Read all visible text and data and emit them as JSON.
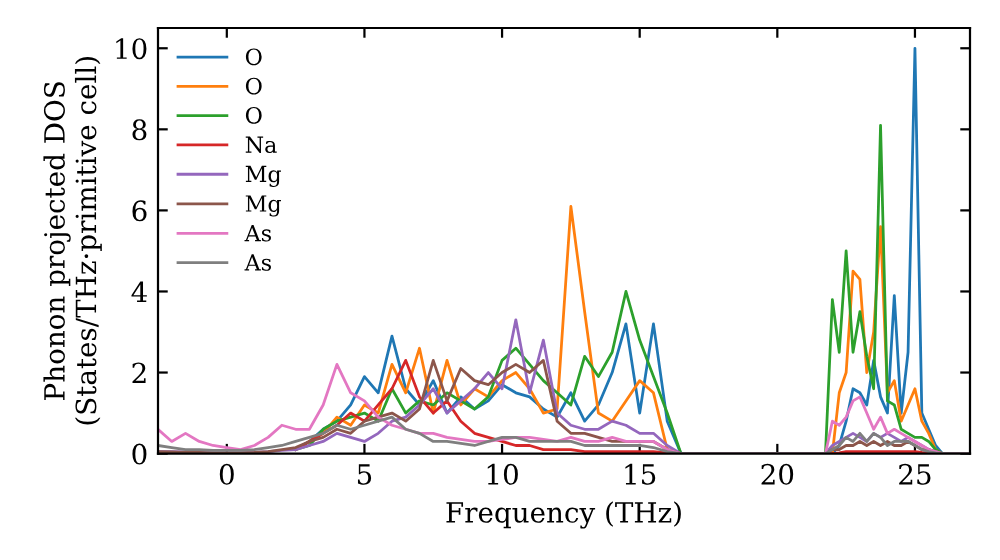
{
  "chart_data": {
    "type": "line",
    "xlabel": "Frequency (THz)",
    "ylabel": "Phonon projected DOS\n(States/THz·primitive cell)",
    "xlim": [
      -2.5,
      27
    ],
    "ylim": [
      0,
      10.5
    ],
    "xticks": [
      0,
      5,
      10,
      15,
      20,
      25
    ],
    "yticks": [
      0,
      2,
      4,
      6,
      8,
      10
    ],
    "grid": false,
    "legend": "top left",
    "marker": "none",
    "line_style": "solid",
    "x": [
      -2.5,
      -2,
      -1.5,
      -1,
      -0.5,
      0,
      0.5,
      1,
      1.5,
      2,
      2.5,
      3,
      3.5,
      4,
      4.5,
      5,
      5.5,
      6,
      6.5,
      7,
      7.5,
      8,
      8.5,
      9,
      9.5,
      10,
      10.5,
      11,
      11.5,
      12,
      12.5,
      13,
      13.5,
      14,
      14.5,
      15,
      15.5,
      16,
      16.5,
      17,
      19,
      21,
      21.75,
      22,
      22.25,
      22.5,
      22.75,
      23,
      23.25,
      23.5,
      23.75,
      24,
      24.25,
      24.5,
      24.75,
      25,
      25.25,
      25.5,
      25.75,
      26,
      26.5,
      27
    ],
    "series": [
      {
        "name": "O",
        "color": "#1f77b4",
        "values": [
          null,
          null,
          null,
          null,
          null,
          null,
          null,
          null,
          null,
          null,
          0.1,
          0.3,
          0.6,
          0.8,
          1.2,
          1.9,
          1.5,
          2.9,
          1.6,
          1.2,
          1.8,
          1.0,
          1.4,
          1.1,
          1.3,
          1.7,
          1.5,
          1.4,
          1.1,
          0.9,
          1.5,
          0.8,
          1.2,
          2.0,
          3.2,
          1.0,
          3.2,
          0.8,
          0,
          0,
          0,
          0,
          0,
          0,
          0.2,
          0.8,
          1.6,
          1.5,
          1.2,
          2.3,
          1.4,
          1.0,
          3.9,
          1.0,
          2.5,
          10.0,
          1.0,
          0.6,
          0.2,
          0,
          0,
          0
        ]
      },
      {
        "name": "O",
        "color": "#ff7f0e",
        "values": [
          null,
          null,
          null,
          null,
          null,
          null,
          null,
          null,
          null,
          null,
          null,
          0.3,
          0.5,
          0.9,
          0.7,
          1.2,
          1.0,
          2.2,
          1.5,
          2.6,
          1.0,
          2.3,
          1.2,
          1.6,
          1.4,
          1.8,
          2.0,
          1.6,
          1.0,
          1.1,
          6.1,
          3.5,
          1.0,
          0.8,
          1.3,
          1.8,
          1.5,
          0.1,
          0,
          0,
          0,
          0,
          0,
          0,
          1.5,
          2.0,
          4.5,
          4.3,
          2.0,
          3.0,
          5.6,
          1.5,
          1.8,
          0.8,
          1.2,
          1.6,
          0.8,
          0.5,
          0.1,
          0,
          0,
          0
        ]
      },
      {
        "name": "O",
        "color": "#2ca02c",
        "values": [
          null,
          null,
          null,
          null,
          null,
          null,
          null,
          null,
          null,
          null,
          0.1,
          0.2,
          0.6,
          0.8,
          0.9,
          1.0,
          0.8,
          1.6,
          1.0,
          1.3,
          1.2,
          1.5,
          1.3,
          1.1,
          1.4,
          2.3,
          2.6,
          2.2,
          1.8,
          1.5,
          1.2,
          2.4,
          1.9,
          2.5,
          4.0,
          2.8,
          1.9,
          1.0,
          0,
          0,
          0,
          0,
          0,
          3.8,
          2.5,
          5.0,
          2.5,
          3.5,
          2.4,
          1.6,
          8.1,
          1.3,
          1.2,
          0.6,
          0.5,
          0.4,
          0.4,
          0.3,
          0.1,
          0,
          0,
          0
        ]
      },
      {
        "name": "Na",
        "color": "#d62728",
        "values": [
          null,
          null,
          null,
          null,
          null,
          null,
          null,
          null,
          null,
          null,
          0.1,
          0.3,
          0.5,
          0.7,
          1.0,
          0.8,
          1.2,
          1.6,
          2.3,
          1.4,
          1.0,
          1.3,
          0.8,
          0.5,
          0.4,
          0.3,
          0.2,
          0.2,
          0.1,
          0.1,
          0.1,
          0.05,
          0.05,
          0.05,
          0.05,
          0.05,
          0.05,
          0.02,
          0,
          0,
          0,
          0,
          0,
          0,
          0.02,
          0.05,
          0.05,
          0.05,
          0.05,
          0.05,
          0.05,
          0.05,
          0.05,
          0.05,
          0.05,
          0.05,
          0.03,
          0.02,
          0.01,
          null,
          null,
          null
        ]
      },
      {
        "name": "Mg",
        "color": "#9467bd",
        "values": [
          0.05,
          0.05,
          0.04,
          0.03,
          0.02,
          0.02,
          0.02,
          0.03,
          0.05,
          0.08,
          0.1,
          0.2,
          0.3,
          0.5,
          0.4,
          0.3,
          0.5,
          0.8,
          0.9,
          1.2,
          1.6,
          1.0,
          1.3,
          1.6,
          2.0,
          1.6,
          3.3,
          1.5,
          2.8,
          1.0,
          0.7,
          0.6,
          0.6,
          0.8,
          0.7,
          0.5,
          0.5,
          0.2,
          0,
          0,
          0,
          0,
          0,
          0.2,
          0.3,
          0.4,
          0.5,
          0.4,
          0.3,
          0.5,
          0.4,
          0.5,
          0.4,
          0.3,
          0.4,
          0.3,
          0.2,
          0.1,
          0.05,
          0,
          0,
          0
        ]
      },
      {
        "name": "Mg",
        "color": "#8c564b",
        "values": [
          0.05,
          0.04,
          0.03,
          0.03,
          0.02,
          0.02,
          0.02,
          0.03,
          0.05,
          0.1,
          0.15,
          0.3,
          0.4,
          0.6,
          0.5,
          0.8,
          0.9,
          1.0,
          0.8,
          1.1,
          2.3,
          1.3,
          2.1,
          1.8,
          1.7,
          2.0,
          2.2,
          2.0,
          2.3,
          0.8,
          0.5,
          0.5,
          0.4,
          0.3,
          0.3,
          0.3,
          0.3,
          0.1,
          0,
          0,
          0,
          0,
          0,
          0.1,
          0.1,
          0.2,
          0.2,
          0.3,
          0.2,
          0.3,
          0.2,
          0.3,
          0.2,
          0.2,
          0.3,
          0.2,
          0.1,
          0.1,
          0.05,
          0,
          0,
          0
        ]
      },
      {
        "name": "As",
        "color": "#e377c2",
        "values": [
          0.6,
          0.3,
          0.5,
          0.3,
          0.2,
          0.15,
          0.1,
          0.2,
          0.4,
          0.7,
          0.6,
          0.6,
          1.2,
          2.2,
          1.5,
          1.3,
          0.9,
          0.7,
          0.6,
          0.5,
          0.5,
          0.4,
          0.35,
          0.3,
          0.3,
          0.35,
          0.4,
          0.4,
          0.35,
          0.3,
          0.4,
          0.3,
          0.3,
          0.4,
          0.3,
          0.3,
          0.3,
          0.1,
          0,
          0,
          0,
          0,
          0,
          0.8,
          0.7,
          0.9,
          1.3,
          1.4,
          1.0,
          0.6,
          0.9,
          0.5,
          0.6,
          0.5,
          0.4,
          0.3,
          0.2,
          0.1,
          0.05,
          0,
          0,
          0
        ]
      },
      {
        "name": "As",
        "color": "#7f7f7f",
        "values": [
          0.2,
          0.15,
          0.1,
          0.1,
          0.08,
          0.08,
          0.08,
          0.1,
          0.15,
          0.2,
          0.3,
          0.4,
          0.5,
          0.7,
          0.6,
          0.7,
          0.8,
          0.9,
          0.6,
          0.5,
          0.3,
          0.3,
          0.25,
          0.2,
          0.3,
          0.4,
          0.4,
          0.3,
          0.3,
          0.3,
          0.3,
          0.2,
          0.2,
          0.2,
          0.2,
          0.2,
          0.15,
          0.05,
          0,
          0,
          0,
          0,
          0,
          0.1,
          0.2,
          0.4,
          0.3,
          0.5,
          0.3,
          0.5,
          0.4,
          0.2,
          0.3,
          0.3,
          0.3,
          0.2,
          0.1,
          0.05,
          0.02,
          0,
          0,
          0
        ]
      }
    ]
  }
}
